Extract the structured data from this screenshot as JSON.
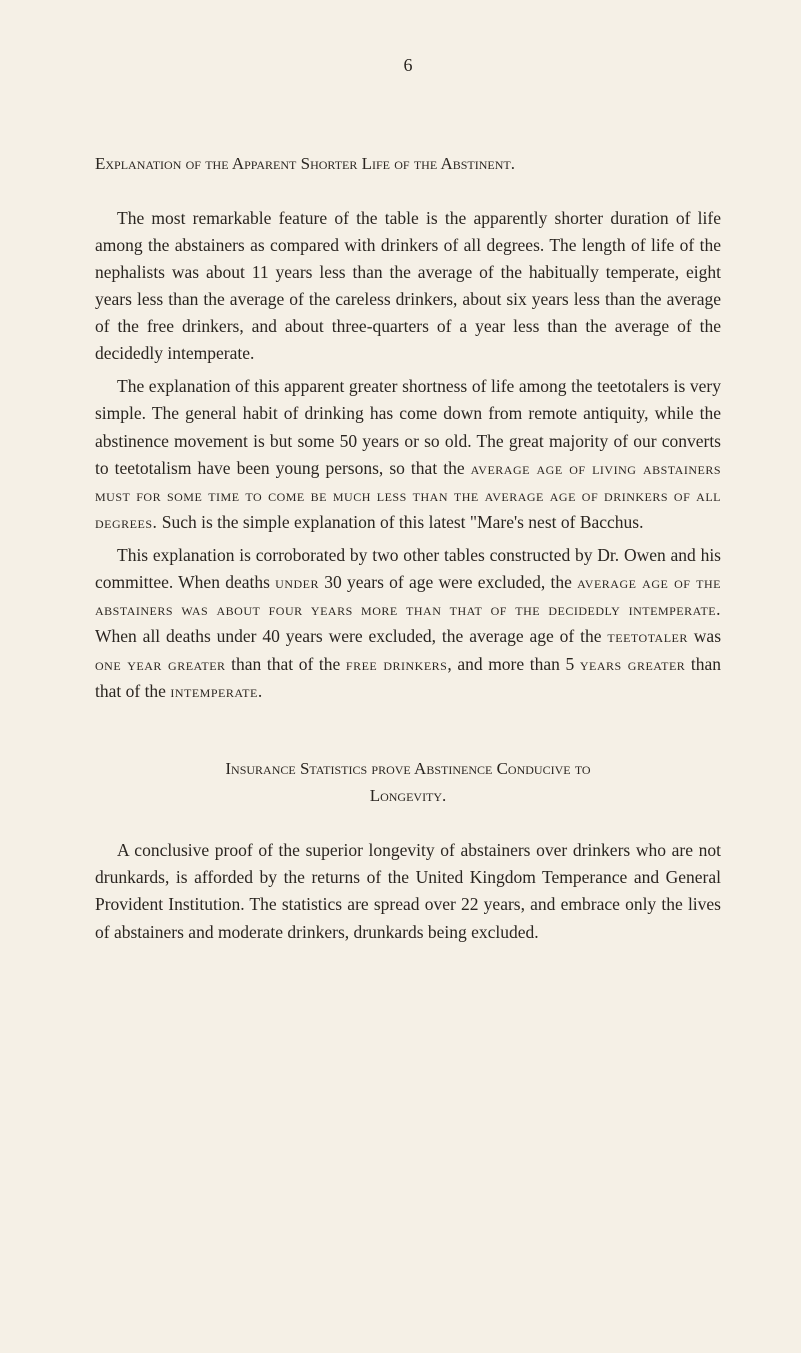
{
  "page_number": "6",
  "heading1": "Explanation of the Apparent Shorter Life of the Abstinent.",
  "para1": "The most remarkable feature of the table is the apparently shorter duration of life among the abstainers as compared with drinkers of all degrees. The length of life of the nephalists was about 11 years less than the average of the habitually temperate, eight years less than the average of the careless drinkers, about six years less than the average of the free drinkers, and about three-quarters of a year less than the average of the decidedly intemperate.",
  "para2_a": "The explanation of this apparent greater shortness of life among the teetotalers is very simple. The general habit of drinking has come down from remote antiquity, while the abstinence movement is but some 50 years or so old. The great majority of our converts to teetotalism have been young persons, so that the ",
  "para2_sc1": "average age of living abstainers must for some time to come be much less than the average age of drinkers of all degrees.",
  "para2_b": " Such is the simple explanation of this latest \"Mare's nest of Bacchus.",
  "para3_a": "This explanation is corroborated by two other tables con­structed by Dr. Owen and his committee. When deaths ",
  "para3_sc1": "under",
  "para3_b": " 30 years of age were excluded, the ",
  "para3_sc2": "average age of the abstainers was about four years more than that of the decidedly intemperate.",
  "para3_c": " When all deaths under 40 years were excluded, the average age of the ",
  "para3_sc3": "teetotaler",
  "para3_d": " was ",
  "para3_sc4": "one year greater",
  "para3_e": " than that of the ",
  "para3_sc5": "free drinkers",
  "para3_f": ", and more than 5 ",
  "para3_sc6": "years greater",
  "para3_g": " than that of the ",
  "para3_sc7": "intemperate.",
  "heading2_line1": "Insurance Statistics prove Abstinence Conducive to",
  "heading2_line2": "Longevity.",
  "para4": "A conclusive proof of the superior longevity of abstainers over drinkers who are not drunkards, is afforded by the returns of the United Kingdom Temperance and General Provident Institution. The statistics are spread over 22 years, and embrace only the lives of abstainers and moderate drinkers, drunkards being excluded.",
  "colors": {
    "background": "#f5f0e6",
    "text": "#2a2520"
  },
  "typography": {
    "body_fontsize": 17.5,
    "heading_fontsize": 17,
    "line_height": 1.55,
    "font_family": "Georgia, Times New Roman, serif"
  }
}
